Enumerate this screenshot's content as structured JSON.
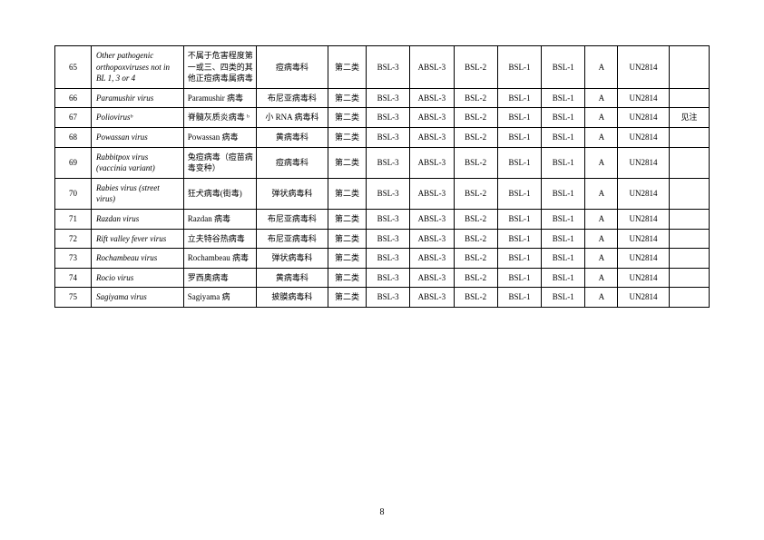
{
  "pageNumber": "8",
  "columns": [
    "num",
    "name",
    "cn",
    "family",
    "cat",
    "b1",
    "b2",
    "b3",
    "b4",
    "b5",
    "a",
    "un",
    "note"
  ],
  "rows": [
    {
      "num": "65",
      "name": "Other pathogenic orthopoxviruses not in BL 1, 3 or 4",
      "cn": "不属于危害程度第一或三、四类的其他正痘病毒属病毒",
      "family": "痘病毒科",
      "cat": "第二类",
      "b1": "BSL-3",
      "b2": "ABSL-3",
      "b3": "BSL-2",
      "b4": "BSL-1",
      "b5": "BSL-1",
      "a": "A",
      "un": "UN2814",
      "note": ""
    },
    {
      "num": "66",
      "name": "Paramushir virus",
      "cn": "Paramushir 病毒",
      "family": "布尼亚病毒科",
      "cat": "第二类",
      "b1": "BSL-3",
      "b2": "ABSL-3",
      "b3": "BSL-2",
      "b4": "BSL-1",
      "b5": "BSL-1",
      "a": "A",
      "un": "UN2814",
      "note": ""
    },
    {
      "num": "67",
      "name": "Poliovirusᵇ",
      "cn": "脊髓灰质炎病毒 ᵇ",
      "family": "小 RNA 病毒科",
      "cat": "第二类",
      "b1": "BSL-3",
      "b2": "ABSL-3",
      "b3": "BSL-2",
      "b4": "BSL-1",
      "b5": "BSL-1",
      "a": "A",
      "un": "UN2814",
      "note": "见注"
    },
    {
      "num": "68",
      "name": "Powassan virus",
      "cn": "Powassan 病毒",
      "family": "黄病毒科",
      "cat": "第二类",
      "b1": "BSL-3",
      "b2": "ABSL-3",
      "b3": "BSL-2",
      "b4": "BSL-1",
      "b5": "BSL-1",
      "a": "A",
      "un": "UN2814",
      "note": ""
    },
    {
      "num": "69",
      "name": "Rabbitpox virus (vaccinia variant)",
      "cn": "兔痘病毒（痘苗病毒变种）",
      "family": "痘病毒科",
      "cat": "第二类",
      "b1": "BSL-3",
      "b2": "ABSL-3",
      "b3": "BSL-2",
      "b4": "BSL-1",
      "b5": "BSL-1",
      "a": "A",
      "un": "UN2814",
      "note": ""
    },
    {
      "num": "70",
      "name": "Rabies virus (street virus)",
      "cn": "狂犬病毒(街毒)",
      "family": "弹状病毒科",
      "cat": "第二类",
      "b1": "BSL-3",
      "b2": "ABSL-3",
      "b3": "BSL-2",
      "b4": "BSL-1",
      "b5": "BSL-1",
      "a": "A",
      "un": "UN2814",
      "note": ""
    },
    {
      "num": "71",
      "name": "Razdan virus",
      "cn": "Razdan 病毒",
      "family": "布尼亚病毒科",
      "cat": "第二类",
      "b1": "BSL-3",
      "b2": "ABSL-3",
      "b3": "BSL-2",
      "b4": "BSL-1",
      "b5": "BSL-1",
      "a": "A",
      "un": "UN2814",
      "note": ""
    },
    {
      "num": "72",
      "name": "Rift valley fever virus",
      "cn": "立夫特谷热病毒",
      "family": "布尼亚病毒科",
      "cat": "第二类",
      "b1": "BSL-3",
      "b2": "ABSL-3",
      "b3": "BSL-2",
      "b4": "BSL-1",
      "b5": "BSL-1",
      "a": "A",
      "un": "UN2814",
      "note": ""
    },
    {
      "num": "73",
      "name": "Rochambeau virus",
      "cn": "Rochambeau 病毒",
      "family": "弹状病毒科",
      "cat": "第二类",
      "b1": "BSL-3",
      "b2": "ABSL-3",
      "b3": "BSL-2",
      "b4": "BSL-1",
      "b5": "BSL-1",
      "a": "A",
      "un": "UN2814",
      "note": ""
    },
    {
      "num": "74",
      "name": "Rocio virus",
      "cn": "罗西奥病毒",
      "family": "黄病毒科",
      "cat": "第二类",
      "b1": "BSL-3",
      "b2": "ABSL-3",
      "b3": "BSL-2",
      "b4": "BSL-1",
      "b5": "BSL-1",
      "a": "A",
      "un": "UN2814",
      "note": ""
    },
    {
      "num": "75",
      "name": "Sagiyama virus",
      "cn": "Sagiyama 病",
      "family": "披膜病毒科",
      "cat": "第二类",
      "b1": "BSL-3",
      "b2": "ABSL-3",
      "b3": "BSL-2",
      "b4": "BSL-1",
      "b5": "BSL-1",
      "a": "A",
      "un": "UN2814",
      "note": ""
    }
  ]
}
